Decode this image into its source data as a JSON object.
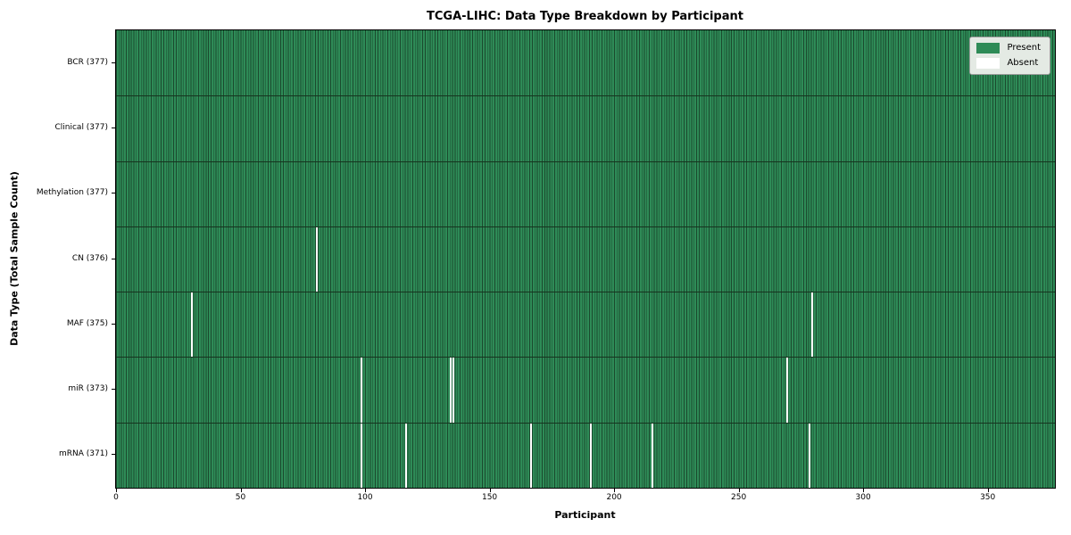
{
  "chart": {
    "title": "TCGA-LIHC: Data Type Breakdown by Participant",
    "xlabel": "Participant",
    "ylabel": "Data Type (Total Sample Count)"
  },
  "chart_data": {
    "type": "heatmap",
    "title": "TCGA-LIHC: Data Type Breakdown by Participant",
    "xlabel": "Participant",
    "ylabel": "Data Type (Total Sample Count)",
    "n_participants": 377,
    "xlim": [
      0,
      377
    ],
    "x_ticks": [
      0,
      50,
      100,
      150,
      200,
      250,
      300,
      350
    ],
    "grid": false,
    "legend_position": "upper right",
    "colors": {
      "present": "#2e8b57",
      "present_edge": "#1b4a2e",
      "absent": "#ffffff",
      "row_separator": "#16341f"
    },
    "legend": [
      {
        "label": "Present",
        "color": "#2e8b57"
      },
      {
        "label": "Absent",
        "color": "#ffffff"
      }
    ],
    "rows": [
      {
        "name": "BCR",
        "label": "BCR (377)",
        "total": 377,
        "absent_participants": []
      },
      {
        "name": "Clinical",
        "label": "Clinical (377)",
        "total": 377,
        "absent_participants": []
      },
      {
        "name": "Methylation",
        "label": "Methylation (377)",
        "total": 377,
        "absent_participants": []
      },
      {
        "name": "CN",
        "label": "CN (376)",
        "total": 376,
        "absent_participants": [
          80
        ]
      },
      {
        "name": "MAF",
        "label": "MAF (375)",
        "total": 375,
        "absent_participants": [
          30,
          279
        ]
      },
      {
        "name": "miR",
        "label": "miR (373)",
        "total": 373,
        "absent_participants": [
          98,
          134,
          135,
          269
        ]
      },
      {
        "name": "mRNA",
        "label": "mRNA (371)",
        "total": 371,
        "absent_participants": [
          98,
          116,
          166,
          190,
          215,
          278
        ]
      }
    ]
  }
}
